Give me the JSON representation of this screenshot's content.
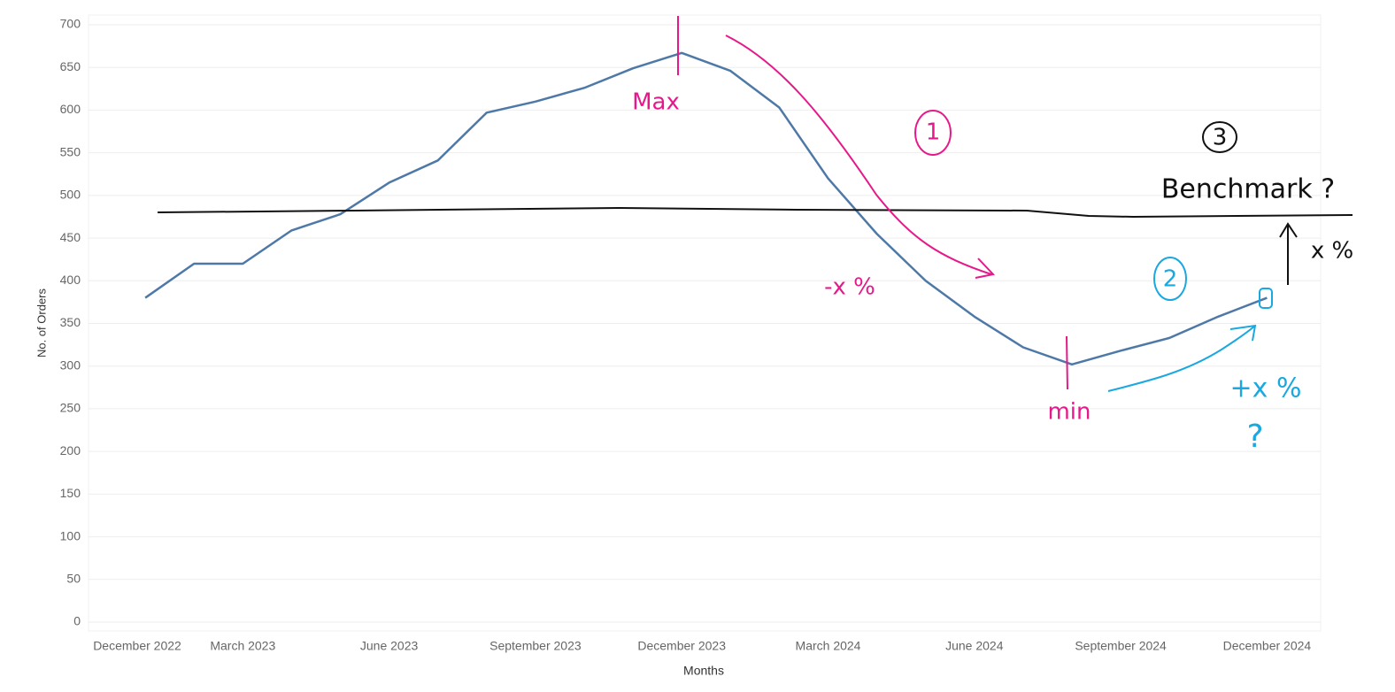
{
  "chart_data": {
    "type": "line",
    "xlabel": "Months",
    "ylabel": "No. of Orders",
    "categories": [
      "December 2022",
      null,
      null,
      "March 2023",
      null,
      null,
      "June 2023",
      null,
      null,
      "September 2023",
      null,
      null,
      "December 2023",
      null,
      null,
      "March 2024",
      null,
      null,
      "June 2024",
      null,
      null,
      "September 2024",
      null,
      null,
      "December 2024"
    ],
    "values": [
      null,
      380,
      420,
      420,
      459,
      478,
      515,
      541,
      597,
      610,
      626,
      649,
      667,
      646,
      603,
      520,
      455,
      400,
      358,
      322,
      302,
      318,
      333,
      358,
      380
    ],
    "color": "#4e79a7",
    "ylim": [
      0,
      700
    ],
    "yticks": [
      0,
      50,
      100,
      150,
      200,
      250,
      300,
      350,
      400,
      450,
      500,
      550,
      600,
      650,
      700
    ],
    "grid": true,
    "annotations": [
      "Max",
      "min",
      "1",
      "2",
      "3",
      "Benchmark ?",
      "-x %",
      "+x %",
      "?",
      "x %"
    ]
  }
}
